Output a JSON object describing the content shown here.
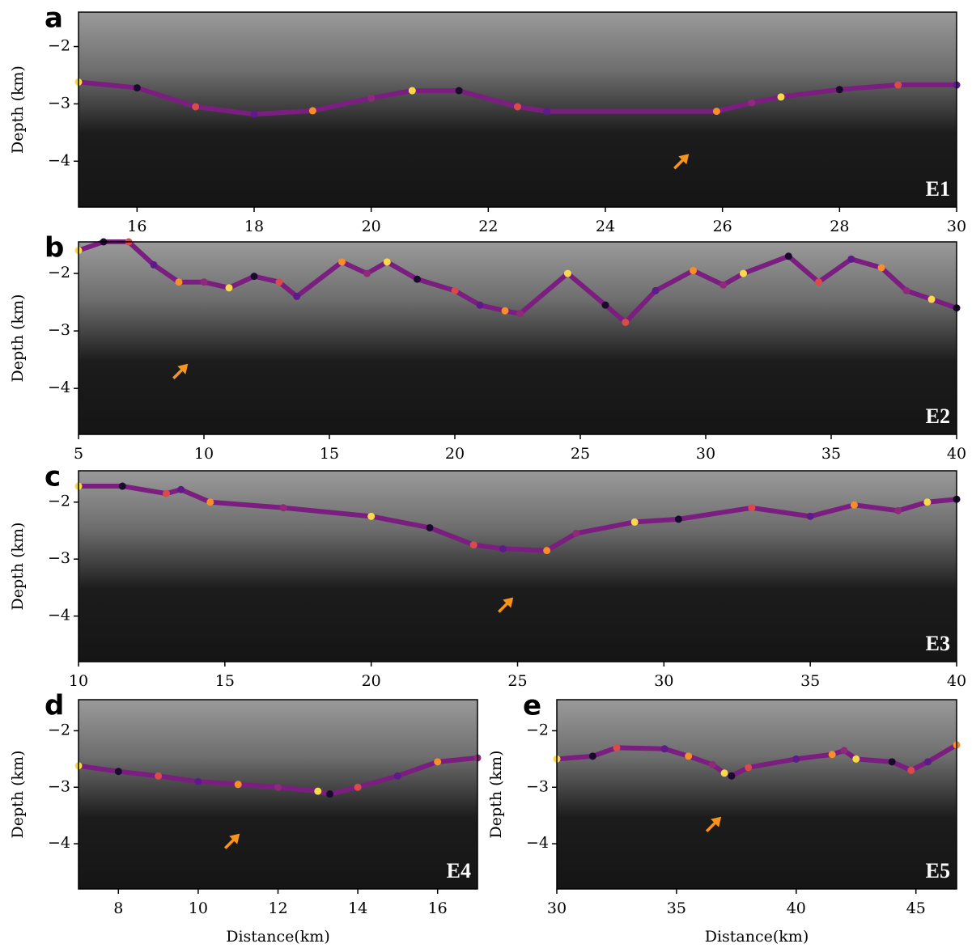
{
  "chart_data": [
    {
      "type": "line",
      "panel_label": "a",
      "annotation": "E1",
      "ylabel": "Depth (km)",
      "xlim": [
        15,
        30
      ],
      "xticks": [
        16,
        18,
        20,
        22,
        24,
        26,
        28,
        30
      ],
      "ylim": [
        -4.8,
        -1.4
      ],
      "yticks": [
        {
          "value": -2,
          "label": "−2"
        },
        {
          "value": -3,
          "label": "−3"
        },
        {
          "value": -4,
          "label": "−4"
        }
      ],
      "x": [
        15,
        16,
        17,
        18,
        19,
        20,
        20.7,
        21.5,
        22.5,
        23,
        25.9,
        26.5,
        27,
        28,
        29,
        30
      ],
      "series": [
        {
          "color": "#7a1f7f",
          "values": [
            -2.62,
            -2.72,
            -3.05,
            -3.18,
            -3.12,
            -2.9,
            -2.77,
            -2.77,
            -3.05,
            -3.13,
            -3.13,
            -2.98,
            -2.88,
            -2.75,
            -2.67,
            -2.67
          ]
        }
      ],
      "marker_colors": [
        "#f9d84a",
        "#1a0a2e",
        "#d94a4a",
        "#5c1a8a",
        "#f68e2a",
        "#8f2a7a"
      ]
    },
    {
      "type": "line",
      "panel_label": "b",
      "annotation": "E2",
      "ylabel": "Depth (km)",
      "xlim": [
        5,
        40
      ],
      "xticks": [
        5,
        10,
        15,
        20,
        25,
        30,
        35,
        40
      ],
      "ylim": [
        -4.8,
        -1.45
      ],
      "yticks": [
        {
          "value": -2,
          "label": "−2"
        },
        {
          "value": -3,
          "label": "−3"
        },
        {
          "value": -4,
          "label": "−4"
        }
      ],
      "x": [
        5,
        6,
        7,
        8,
        9,
        10,
        11,
        12,
        13,
        13.7,
        15.5,
        16.5,
        17.3,
        18.5,
        20,
        21,
        22,
        22.6,
        24.5,
        26,
        26.8,
        28,
        29.5,
        30.7,
        31.5,
        33.3,
        34.5,
        35.8,
        37,
        38,
        39,
        40
      ],
      "series": [
        {
          "color": "#7a1f7f",
          "values": [
            -1.6,
            -1.45,
            -1.45,
            -1.85,
            -2.15,
            -2.15,
            -2.25,
            -2.05,
            -2.15,
            -2.4,
            -1.8,
            -2.0,
            -1.8,
            -2.1,
            -2.3,
            -2.55,
            -2.65,
            -2.7,
            -2.0,
            -2.55,
            -2.85,
            -2.3,
            -1.95,
            -2.2,
            -2.0,
            -1.7,
            -2.15,
            -1.75,
            -1.9,
            -2.3,
            -2.45,
            -2.6
          ]
        }
      ],
      "marker_colors": [
        "#f9d84a",
        "#1a0a2e",
        "#d94a4a",
        "#5c1a8a",
        "#f68e2a",
        "#8f2a7a"
      ]
    },
    {
      "type": "line",
      "panel_label": "c",
      "annotation": "E3",
      "ylabel": "Depth (km)",
      "xlim": [
        10,
        40
      ],
      "xticks": [
        10,
        15,
        20,
        25,
        30,
        35,
        40
      ],
      "ylim": [
        -4.8,
        -1.45
      ],
      "yticks": [
        {
          "value": -2,
          "label": "−2"
        },
        {
          "value": -3,
          "label": "−3"
        },
        {
          "value": -4,
          "label": "−4"
        }
      ],
      "x": [
        10,
        11.5,
        13,
        13.5,
        14.5,
        17,
        20,
        22,
        23.5,
        24.5,
        26,
        27,
        29,
        30.5,
        33,
        35,
        36.5,
        38,
        39,
        40
      ],
      "series": [
        {
          "color": "#7a1f7f",
          "values": [
            -1.72,
            -1.72,
            -1.85,
            -1.78,
            -2.0,
            -2.1,
            -2.25,
            -2.45,
            -2.75,
            -2.82,
            -2.85,
            -2.55,
            -2.35,
            -2.3,
            -2.1,
            -2.25,
            -2.05,
            -2.15,
            -2.0,
            -1.95
          ]
        }
      ],
      "marker_colors": [
        "#f9d84a",
        "#1a0a2e",
        "#d94a4a",
        "#5c1a8a",
        "#f68e2a",
        "#8f2a7a"
      ]
    },
    {
      "type": "line",
      "panel_label": "d",
      "annotation": "E4",
      "ylabel": "Depth (km)",
      "xlabel": "Distance(km)",
      "xlim": [
        7,
        17
      ],
      "xticks": [
        8,
        10,
        12,
        14,
        16
      ],
      "ylim": [
        -4.8,
        -1.45
      ],
      "yticks": [
        {
          "value": -2,
          "label": "−2"
        },
        {
          "value": -3,
          "label": "−3"
        },
        {
          "value": -4,
          "label": "−4"
        }
      ],
      "x": [
        7,
        8,
        9,
        10,
        11,
        12,
        13,
        13.3,
        14,
        15,
        16,
        17
      ],
      "series": [
        {
          "color": "#7a1f7f",
          "values": [
            -2.62,
            -2.72,
            -2.8,
            -2.9,
            -2.95,
            -3.0,
            -3.07,
            -3.12,
            -3.0,
            -2.8,
            -2.55,
            -2.48
          ]
        }
      ],
      "marker_colors": [
        "#f9d84a",
        "#1a0a2e",
        "#d94a4a",
        "#5c1a8a",
        "#f68e2a",
        "#8f2a7a"
      ]
    },
    {
      "type": "line",
      "panel_label": "e",
      "annotation": "E5",
      "ylabel": "Depth (km)",
      "xlabel": "Distance(km)",
      "xlim": [
        30,
        46.7
      ],
      "xticks": [
        30,
        35,
        40,
        45
      ],
      "ylim": [
        -4.8,
        -1.45
      ],
      "yticks": [
        {
          "value": -2,
          "label": "−2"
        },
        {
          "value": -3,
          "label": "−3"
        },
        {
          "value": -4,
          "label": "−4"
        }
      ],
      "x": [
        30,
        31.5,
        32.5,
        34.5,
        35.5,
        36.5,
        37,
        37.3,
        38,
        40,
        41.5,
        42,
        42.5,
        44,
        44.8,
        45.5,
        46.7
      ],
      "series": [
        {
          "color": "#7a1f7f",
          "values": [
            -2.5,
            -2.45,
            -2.3,
            -2.32,
            -2.45,
            -2.6,
            -2.75,
            -2.8,
            -2.65,
            -2.5,
            -2.42,
            -2.35,
            -2.5,
            -2.55,
            -2.7,
            -2.55,
            -2.25
          ]
        }
      ],
      "marker_colors": [
        "#f9d84a",
        "#1a0a2e",
        "#d94a4a",
        "#5c1a8a",
        "#f68e2a",
        "#8f2a7a"
      ]
    }
  ]
}
